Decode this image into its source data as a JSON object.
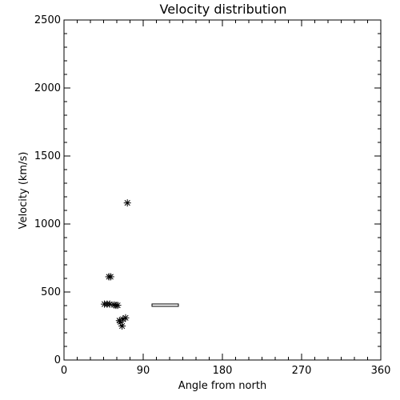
{
  "chart_data": {
    "type": "scatter",
    "title": "Velocity distribution",
    "xlabel": "Angle from north",
    "ylabel": "Velocity (km/s)",
    "xlim": [
      0,
      360
    ],
    "ylim": [
      0,
      2500
    ],
    "x_ticks": [
      0,
      90,
      180,
      270,
      360
    ],
    "y_ticks": [
      0,
      500,
      1000,
      1500,
      2000,
      2500
    ],
    "x_tick_labels": [
      "0",
      "90",
      "180",
      "270",
      "360"
    ],
    "y_tick_labels": [
      "0",
      "500",
      "1000",
      "1500",
      "2000",
      "2500"
    ],
    "grid": false,
    "marker": "asterisk",
    "points": [
      {
        "x": 72,
        "y": 1155
      },
      {
        "x": 51,
        "y": 612
      },
      {
        "x": 53,
        "y": 612
      },
      {
        "x": 46,
        "y": 411
      },
      {
        "x": 49,
        "y": 411
      },
      {
        "x": 52,
        "y": 411
      },
      {
        "x": 57,
        "y": 405
      },
      {
        "x": 59,
        "y": 402
      },
      {
        "x": 61,
        "y": 402
      },
      {
        "x": 63,
        "y": 290
      },
      {
        "x": 67,
        "y": 300
      },
      {
        "x": 70,
        "y": 310
      },
      {
        "x": 64,
        "y": 280
      },
      {
        "x": 66,
        "y": 250
      }
    ],
    "range_bars": [
      {
        "x_start": 100,
        "x_end": 130,
        "y_low": 398,
        "y_high": 412
      }
    ]
  }
}
